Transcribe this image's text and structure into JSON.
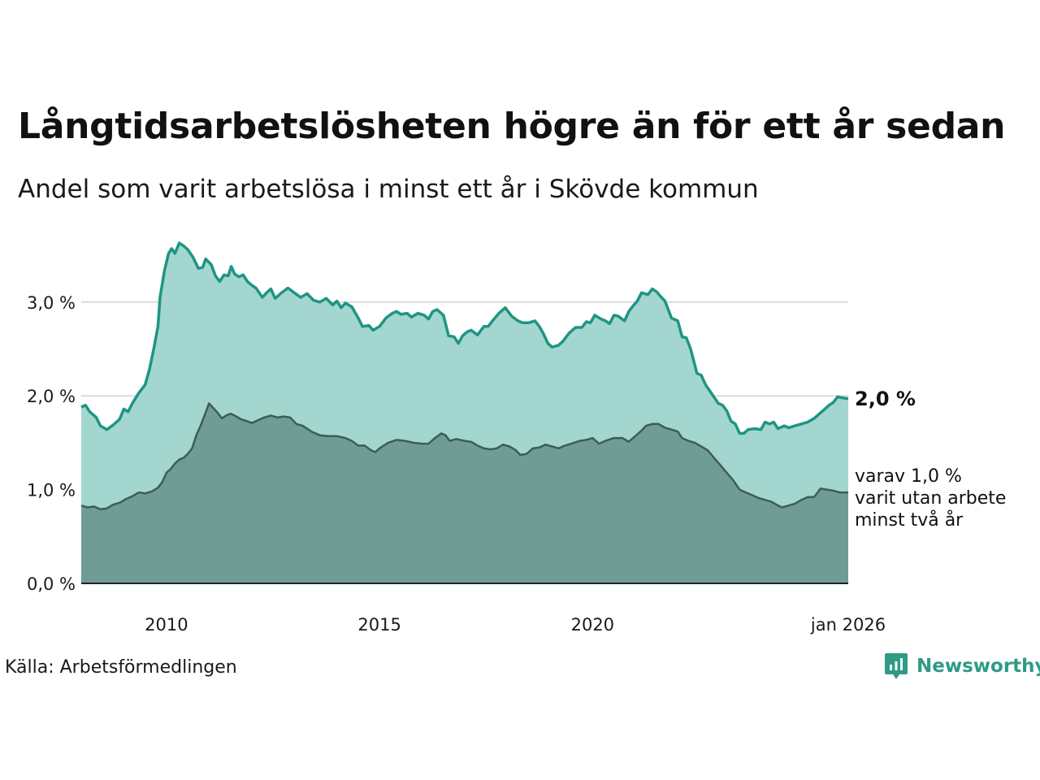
{
  "header": {
    "title": "Långtidsarbetslösheten högre än för ett år sedan",
    "subtitle": "Andel som varit arbetslösa i minst ett år i Skövde kommun"
  },
  "annotations": {
    "last_value": "2,0 %",
    "sub_line1": "varav 1,0 %",
    "sub_line2": "varit utan arbete",
    "sub_line3": "minst två år"
  },
  "footer": {
    "source": "Källa: Arbetsförmedlingen",
    "logo_text": "Newsworthy"
  },
  "colors": {
    "series1_line": "#1e9582",
    "series1_fill": "#a4d6d0",
    "series2_line": "#3c5e55",
    "series2_fill": "#6f9c95",
    "grid": "#dcdcdc",
    "logo": "#2f9a86"
  },
  "chart_data": {
    "type": "area",
    "title": "Långtidsarbetslösheten högre än för ett år sedan",
    "subtitle": "Andel som varit arbetslösa i minst ett år i Skövde kommun",
    "xlabel": "",
    "ylabel": "",
    "x_range": [
      2008.0,
      2026.0
    ],
    "ylim": [
      0,
      3.6
    ],
    "y_ticks": [
      0,
      1,
      2,
      3
    ],
    "y_tick_labels": [
      "0,0 %",
      "1,0 %",
      "2,0 %",
      "3,0 %"
    ],
    "x_ticks": [
      2010,
      2015,
      2020,
      2026
    ],
    "x_tick_labels": [
      "2010",
      "2015",
      "2020",
      "jan 2026"
    ],
    "grid": true,
    "legend": "none",
    "series": [
      {
        "name": "Minst ett år",
        "points": [
          [
            2008.0,
            1.88
          ],
          [
            2008.1,
            1.9
          ],
          [
            2008.2,
            1.83
          ],
          [
            2008.35,
            1.77
          ],
          [
            2008.45,
            1.68
          ],
          [
            2008.6,
            1.64
          ],
          [
            2008.75,
            1.69
          ],
          [
            2008.9,
            1.75
          ],
          [
            2009.0,
            1.86
          ],
          [
            2009.1,
            1.83
          ],
          [
            2009.2,
            1.92
          ],
          [
            2009.35,
            2.03
          ],
          [
            2009.5,
            2.12
          ],
          [
            2009.6,
            2.28
          ],
          [
            2009.7,
            2.5
          ],
          [
            2009.8,
            2.74
          ],
          [
            2009.85,
            3.05
          ],
          [
            2009.95,
            3.33
          ],
          [
            2010.05,
            3.52
          ],
          [
            2010.12,
            3.57
          ],
          [
            2010.2,
            3.52
          ],
          [
            2010.3,
            3.63
          ],
          [
            2010.4,
            3.6
          ],
          [
            2010.5,
            3.56
          ],
          [
            2010.62,
            3.48
          ],
          [
            2010.75,
            3.36
          ],
          [
            2010.85,
            3.37
          ],
          [
            2010.92,
            3.46
          ],
          [
            2011.05,
            3.4
          ],
          [
            2011.15,
            3.28
          ],
          [
            2011.25,
            3.22
          ],
          [
            2011.35,
            3.29
          ],
          [
            2011.45,
            3.28
          ],
          [
            2011.52,
            3.38
          ],
          [
            2011.6,
            3.3
          ],
          [
            2011.7,
            3.27
          ],
          [
            2011.8,
            3.29
          ],
          [
            2011.9,
            3.22
          ],
          [
            2012.0,
            3.18
          ],
          [
            2012.1,
            3.15
          ],
          [
            2012.25,
            3.05
          ],
          [
            2012.35,
            3.1
          ],
          [
            2012.45,
            3.14
          ],
          [
            2012.55,
            3.04
          ],
          [
            2012.7,
            3.1
          ],
          [
            2012.85,
            3.15
          ],
          [
            2013.0,
            3.1
          ],
          [
            2013.15,
            3.05
          ],
          [
            2013.3,
            3.09
          ],
          [
            2013.45,
            3.02
          ],
          [
            2013.6,
            3.0
          ],
          [
            2013.75,
            3.04
          ],
          [
            2013.9,
            2.97
          ],
          [
            2014.0,
            3.01
          ],
          [
            2014.1,
            2.94
          ],
          [
            2014.2,
            2.99
          ],
          [
            2014.35,
            2.95
          ],
          [
            2014.5,
            2.83
          ],
          [
            2014.6,
            2.74
          ],
          [
            2014.75,
            2.75
          ],
          [
            2014.85,
            2.7
          ],
          [
            2015.0,
            2.74
          ],
          [
            2015.15,
            2.83
          ],
          [
            2015.3,
            2.88
          ],
          [
            2015.4,
            2.9
          ],
          [
            2015.5,
            2.87
          ],
          [
            2015.65,
            2.88
          ],
          [
            2015.75,
            2.84
          ],
          [
            2015.9,
            2.88
          ],
          [
            2016.05,
            2.86
          ],
          [
            2016.15,
            2.82
          ],
          [
            2016.25,
            2.9
          ],
          [
            2016.35,
            2.92
          ],
          [
            2016.5,
            2.86
          ],
          [
            2016.62,
            2.64
          ],
          [
            2016.75,
            2.63
          ],
          [
            2016.85,
            2.56
          ],
          [
            2016.95,
            2.64
          ],
          [
            2017.05,
            2.68
          ],
          [
            2017.15,
            2.7
          ],
          [
            2017.3,
            2.65
          ],
          [
            2017.45,
            2.74
          ],
          [
            2017.55,
            2.74
          ],
          [
            2017.65,
            2.8
          ],
          [
            2017.8,
            2.88
          ],
          [
            2017.95,
            2.94
          ],
          [
            2018.1,
            2.85
          ],
          [
            2018.25,
            2.8
          ],
          [
            2018.35,
            2.78
          ],
          [
            2018.5,
            2.78
          ],
          [
            2018.65,
            2.8
          ],
          [
            2018.75,
            2.74
          ],
          [
            2018.85,
            2.66
          ],
          [
            2018.95,
            2.56
          ],
          [
            2019.05,
            2.52
          ],
          [
            2019.2,
            2.54
          ],
          [
            2019.3,
            2.58
          ],
          [
            2019.45,
            2.67
          ],
          [
            2019.6,
            2.73
          ],
          [
            2019.75,
            2.73
          ],
          [
            2019.85,
            2.79
          ],
          [
            2019.95,
            2.78
          ],
          [
            2020.05,
            2.86
          ],
          [
            2020.2,
            2.82
          ],
          [
            2020.3,
            2.8
          ],
          [
            2020.4,
            2.77
          ],
          [
            2020.5,
            2.86
          ],
          [
            2020.6,
            2.85
          ],
          [
            2020.75,
            2.8
          ],
          [
            2020.85,
            2.9
          ],
          [
            2020.95,
            2.96
          ],
          [
            2021.05,
            3.01
          ],
          [
            2021.15,
            3.1
          ],
          [
            2021.3,
            3.08
          ],
          [
            2021.4,
            3.14
          ],
          [
            2021.5,
            3.11
          ],
          [
            2021.6,
            3.06
          ],
          [
            2021.7,
            3.01
          ],
          [
            2021.85,
            2.83
          ],
          [
            2022.0,
            2.8
          ],
          [
            2022.1,
            2.63
          ],
          [
            2022.2,
            2.62
          ],
          [
            2022.3,
            2.5
          ],
          [
            2022.45,
            2.24
          ],
          [
            2022.55,
            2.22
          ],
          [
            2022.65,
            2.12
          ],
          [
            2022.8,
            2.02
          ],
          [
            2022.95,
            1.92
          ],
          [
            2023.05,
            1.9
          ],
          [
            2023.15,
            1.84
          ],
          [
            2023.25,
            1.73
          ],
          [
            2023.35,
            1.7
          ],
          [
            2023.45,
            1.6
          ],
          [
            2023.55,
            1.6
          ],
          [
            2023.65,
            1.64
          ],
          [
            2023.8,
            1.65
          ],
          [
            2023.95,
            1.64
          ],
          [
            2024.05,
            1.72
          ],
          [
            2024.15,
            1.7
          ],
          [
            2024.25,
            1.72
          ],
          [
            2024.35,
            1.65
          ],
          [
            2024.5,
            1.68
          ],
          [
            2024.6,
            1.66
          ],
          [
            2024.75,
            1.68
          ],
          [
            2024.9,
            1.7
          ],
          [
            2025.05,
            1.72
          ],
          [
            2025.2,
            1.76
          ],
          [
            2025.3,
            1.8
          ],
          [
            2025.45,
            1.86
          ],
          [
            2025.55,
            1.9
          ],
          [
            2025.65,
            1.93
          ],
          [
            2025.75,
            1.99
          ],
          [
            2025.85,
            1.98
          ],
          [
            2026.0,
            1.97
          ]
        ]
      },
      {
        "name": "varav minst två år",
        "points": [
          [
            2008.0,
            0.83
          ],
          [
            2008.15,
            0.81
          ],
          [
            2008.3,
            0.82
          ],
          [
            2008.45,
            0.79
          ],
          [
            2008.6,
            0.8
          ],
          [
            2008.75,
            0.84
          ],
          [
            2008.9,
            0.86
          ],
          [
            2009.05,
            0.9
          ],
          [
            2009.2,
            0.93
          ],
          [
            2009.35,
            0.97
          ],
          [
            2009.5,
            0.96
          ],
          [
            2009.65,
            0.98
          ],
          [
            2009.8,
            1.02
          ],
          [
            2009.9,
            1.08
          ],
          [
            2010.0,
            1.18
          ],
          [
            2010.1,
            1.22
          ],
          [
            2010.2,
            1.28
          ],
          [
            2010.3,
            1.32
          ],
          [
            2010.4,
            1.34
          ],
          [
            2010.5,
            1.38
          ],
          [
            2010.6,
            1.44
          ],
          [
            2010.7,
            1.58
          ],
          [
            2010.8,
            1.68
          ],
          [
            2010.9,
            1.8
          ],
          [
            2011.0,
            1.92
          ],
          [
            2011.1,
            1.87
          ],
          [
            2011.2,
            1.82
          ],
          [
            2011.3,
            1.76
          ],
          [
            2011.4,
            1.79
          ],
          [
            2011.5,
            1.81
          ],
          [
            2011.6,
            1.79
          ],
          [
            2011.75,
            1.75
          ],
          [
            2011.9,
            1.73
          ],
          [
            2012.0,
            1.71
          ],
          [
            2012.15,
            1.74
          ],
          [
            2012.3,
            1.77
          ],
          [
            2012.45,
            1.79
          ],
          [
            2012.6,
            1.77
          ],
          [
            2012.75,
            1.78
          ],
          [
            2012.9,
            1.77
          ],
          [
            2013.05,
            1.7
          ],
          [
            2013.2,
            1.68
          ],
          [
            2013.4,
            1.62
          ],
          [
            2013.6,
            1.58
          ],
          [
            2013.8,
            1.57
          ],
          [
            2014.0,
            1.57
          ],
          [
            2014.2,
            1.55
          ],
          [
            2014.35,
            1.52
          ],
          [
            2014.5,
            1.47
          ],
          [
            2014.65,
            1.47
          ],
          [
            2014.8,
            1.42
          ],
          [
            2014.9,
            1.4
          ],
          [
            2015.0,
            1.44
          ],
          [
            2015.2,
            1.5
          ],
          [
            2015.4,
            1.53
          ],
          [
            2015.6,
            1.52
          ],
          [
            2015.8,
            1.5
          ],
          [
            2016.0,
            1.49
          ],
          [
            2016.15,
            1.49
          ],
          [
            2016.3,
            1.55
          ],
          [
            2016.45,
            1.6
          ],
          [
            2016.55,
            1.58
          ],
          [
            2016.65,
            1.52
          ],
          [
            2016.8,
            1.54
          ],
          [
            2017.0,
            1.52
          ],
          [
            2017.15,
            1.51
          ],
          [
            2017.3,
            1.47
          ],
          [
            2017.45,
            1.44
          ],
          [
            2017.6,
            1.43
          ],
          [
            2017.75,
            1.44
          ],
          [
            2017.9,
            1.48
          ],
          [
            2018.05,
            1.46
          ],
          [
            2018.2,
            1.42
          ],
          [
            2018.3,
            1.37
          ],
          [
            2018.45,
            1.38
          ],
          [
            2018.6,
            1.44
          ],
          [
            2018.75,
            1.45
          ],
          [
            2018.9,
            1.48
          ],
          [
            2019.05,
            1.46
          ],
          [
            2019.2,
            1.44
          ],
          [
            2019.35,
            1.47
          ],
          [
            2019.5,
            1.49
          ],
          [
            2019.7,
            1.52
          ],
          [
            2019.85,
            1.53
          ],
          [
            2020.0,
            1.55
          ],
          [
            2020.15,
            1.49
          ],
          [
            2020.3,
            1.52
          ],
          [
            2020.5,
            1.55
          ],
          [
            2020.7,
            1.55
          ],
          [
            2020.85,
            1.51
          ],
          [
            2021.0,
            1.57
          ],
          [
            2021.15,
            1.63
          ],
          [
            2021.25,
            1.68
          ],
          [
            2021.4,
            1.7
          ],
          [
            2021.55,
            1.7
          ],
          [
            2021.7,
            1.66
          ],
          [
            2021.85,
            1.64
          ],
          [
            2022.0,
            1.62
          ],
          [
            2022.1,
            1.55
          ],
          [
            2022.25,
            1.52
          ],
          [
            2022.4,
            1.5
          ],
          [
            2022.55,
            1.46
          ],
          [
            2022.7,
            1.42
          ],
          [
            2022.85,
            1.34
          ],
          [
            2023.0,
            1.26
          ],
          [
            2023.15,
            1.18
          ],
          [
            2023.3,
            1.1
          ],
          [
            2023.45,
            1.0
          ],
          [
            2023.6,
            0.97
          ],
          [
            2023.75,
            0.94
          ],
          [
            2023.9,
            0.91
          ],
          [
            2024.05,
            0.89
          ],
          [
            2024.2,
            0.87
          ],
          [
            2024.35,
            0.83
          ],
          [
            2024.45,
            0.81
          ],
          [
            2024.6,
            0.83
          ],
          [
            2024.75,
            0.85
          ],
          [
            2024.9,
            0.89
          ],
          [
            2025.05,
            0.92
          ],
          [
            2025.2,
            0.92
          ],
          [
            2025.35,
            1.01
          ],
          [
            2025.5,
            1.0
          ],
          [
            2025.65,
            0.99
          ],
          [
            2025.8,
            0.97
          ],
          [
            2025.9,
            0.97
          ],
          [
            2026.0,
            0.97
          ]
        ]
      }
    ]
  }
}
